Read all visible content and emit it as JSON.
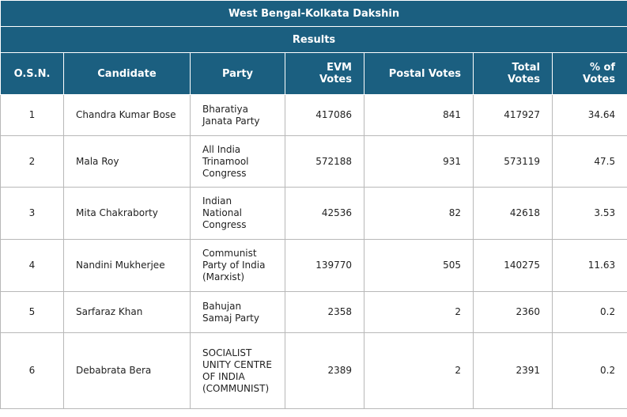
{
  "header": {
    "title": "West Bengal-Kolkata Dakshin",
    "subtitle": "Results"
  },
  "table": {
    "columns": [
      "O.S.N.",
      "Candidate",
      "Party",
      "EVM Votes",
      "Postal Votes",
      "Total Votes",
      "% of Votes"
    ],
    "rows": [
      [
        1,
        "Chandra Kumar Bose",
        "Bharatiya Janata Party",
        417086,
        841,
        417927,
        34.64
      ],
      [
        2,
        "Mala Roy",
        "All India Trinamool Congress",
        572188,
        931,
        573119,
        47.5
      ],
      [
        3,
        "Mita Chakraborty",
        "Indian National Congress",
        42536,
        82,
        42618,
        3.53
      ],
      [
        4,
        "Nandini Mukherjee",
        "Communist Party of India (Marxist)",
        139770,
        505,
        140275,
        11.63
      ],
      [
        5,
        "Sarfaraz Khan",
        "Bahujan Samaj Party",
        2358,
        2,
        2360,
        0.2
      ],
      [
        6,
        "Debabrata Bera",
        "SOCIALIST UNITY CENTRE OF INDIA (COMMUNIST)",
        2389,
        2,
        2391,
        0.2
      ]
    ]
  }
}
